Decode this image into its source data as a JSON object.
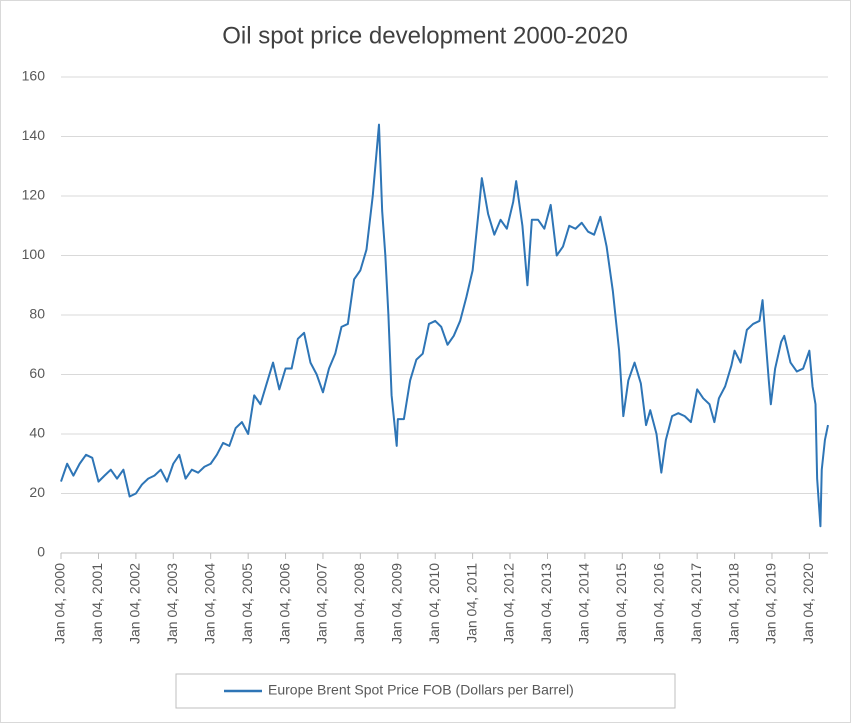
{
  "chart_data": {
    "type": "line",
    "title": "Oil spot price development 2000-2020",
    "x": [
      "2000-01-04",
      "2000-03-04",
      "2000-05-04",
      "2000-07-04",
      "2000-09-04",
      "2000-11-04",
      "2001-01-04",
      "2001-03-04",
      "2001-05-04",
      "2001-07-04",
      "2001-09-04",
      "2001-11-04",
      "2002-01-04",
      "2002-03-04",
      "2002-05-04",
      "2002-07-04",
      "2002-09-04",
      "2002-11-04",
      "2003-01-04",
      "2003-03-04",
      "2003-05-04",
      "2003-07-04",
      "2003-09-04",
      "2003-11-04",
      "2004-01-04",
      "2004-03-04",
      "2004-05-04",
      "2004-07-04",
      "2004-09-04",
      "2004-11-04",
      "2005-01-04",
      "2005-03-04",
      "2005-05-04",
      "2005-07-04",
      "2005-09-04",
      "2005-11-04",
      "2006-01-04",
      "2006-03-04",
      "2006-05-04",
      "2006-07-04",
      "2006-09-04",
      "2006-11-04",
      "2007-01-04",
      "2007-03-04",
      "2007-05-04",
      "2007-07-04",
      "2007-09-04",
      "2007-11-04",
      "2008-01-04",
      "2008-03-04",
      "2008-05-04",
      "2008-07-04",
      "2008-08-04",
      "2008-09-04",
      "2008-10-04",
      "2008-11-04",
      "2008-12-24",
      "2009-01-04",
      "2009-03-04",
      "2009-05-04",
      "2009-07-04",
      "2009-09-04",
      "2009-11-04",
      "2010-01-04",
      "2010-03-04",
      "2010-05-04",
      "2010-07-04",
      "2010-09-04",
      "2010-11-04",
      "2011-01-04",
      "2011-03-04",
      "2011-04-04",
      "2011-06-04",
      "2011-08-04",
      "2011-10-04",
      "2011-12-04",
      "2012-02-04",
      "2012-03-04",
      "2012-05-04",
      "2012-06-22",
      "2012-08-04",
      "2012-10-04",
      "2012-12-04",
      "2013-02-04",
      "2013-04-04",
      "2013-06-04",
      "2013-08-04",
      "2013-10-04",
      "2013-12-04",
      "2014-02-04",
      "2014-04-04",
      "2014-06-04",
      "2014-08-04",
      "2014-10-04",
      "2014-12-04",
      "2015-01-14",
      "2015-03-04",
      "2015-05-04",
      "2015-07-04",
      "2015-08-24",
      "2015-10-04",
      "2015-12-04",
      "2016-01-20",
      "2016-03-04",
      "2016-05-04",
      "2016-07-04",
      "2016-09-04",
      "2016-11-04",
      "2017-01-04",
      "2017-03-04",
      "2017-05-04",
      "2017-06-21",
      "2017-08-04",
      "2017-10-04",
      "2017-12-04",
      "2018-01-04",
      "2018-03-04",
      "2018-05-04",
      "2018-07-04",
      "2018-09-04",
      "2018-10-04",
      "2018-12-04",
      "2018-12-24",
      "2019-02-04",
      "2019-04-04",
      "2019-05-04",
      "2019-07-04",
      "2019-09-04",
      "2019-11-04",
      "2020-01-04",
      "2020-02-04",
      "2020-03-04",
      "2020-03-20",
      "2020-04-21",
      "2020-05-04",
      "2020-06-04",
      "2020-07-04"
    ],
    "series": [
      {
        "name": "Europe Brent Spot Price FOB (Dollars per Barrel)",
        "color": "#2e75b6",
        "values": [
          24,
          30,
          26,
          30,
          33,
          32,
          24,
          26,
          28,
          25,
          28,
          19,
          20,
          23,
          25,
          26,
          28,
          24,
          30,
          33,
          25,
          28,
          27,
          29,
          30,
          33,
          37,
          36,
          42,
          44,
          40,
          53,
          50,
          57,
          64,
          55,
          62,
          62,
          72,
          74,
          64,
          60,
          54,
          62,
          67,
          76,
          77,
          92,
          95,
          102,
          120,
          144,
          115,
          100,
          80,
          53,
          36,
          45,
          45,
          58,
          65,
          67,
          77,
          78,
          76,
          70,
          73,
          78,
          86,
          95,
          115,
          126,
          114,
          107,
          112,
          109,
          118,
          125,
          110,
          90,
          112,
          112,
          109,
          117,
          100,
          103,
          110,
          109,
          111,
          108,
          107,
          113,
          103,
          88,
          68,
          46,
          58,
          64,
          57,
          43,
          48,
          40,
          27,
          38,
          46,
          47,
          46,
          44,
          55,
          52,
          50,
          44,
          52,
          56,
          63,
          68,
          64,
          75,
          77,
          78,
          85,
          58,
          50,
          62,
          71,
          73,
          64,
          61,
          62,
          68,
          56,
          50,
          25,
          9,
          28,
          38,
          43
        ]
      }
    ],
    "xlim": [
      "2000-01-04",
      "2020-07-04"
    ],
    "xticks": [
      {
        "value": "2000-01-04",
        "label": "Jan 04, 2000"
      },
      {
        "value": "2001-01-04",
        "label": "Jan 04, 2001"
      },
      {
        "value": "2002-01-04",
        "label": "Jan 04, 2002"
      },
      {
        "value": "2003-01-04",
        "label": "Jan 04, 2003"
      },
      {
        "value": "2004-01-04",
        "label": "Jan 04, 2004"
      },
      {
        "value": "2005-01-04",
        "label": "Jan 04, 2005"
      },
      {
        "value": "2006-01-04",
        "label": "Jan 04, 2006"
      },
      {
        "value": "2007-01-04",
        "label": "Jan 04, 2007"
      },
      {
        "value": "2008-01-04",
        "label": "Jan 04, 2008"
      },
      {
        "value": "2009-01-04",
        "label": "Jan 04, 2009"
      },
      {
        "value": "2010-01-04",
        "label": "Jan 04, 2010"
      },
      {
        "value": "2011-01-04",
        "label": "Jan 04, 2011"
      },
      {
        "value": "2012-01-04",
        "label": "Jan 04, 2012"
      },
      {
        "value": "2013-01-04",
        "label": "Jan 04, 2013"
      },
      {
        "value": "2014-01-04",
        "label": "Jan 04, 2014"
      },
      {
        "value": "2015-01-04",
        "label": "Jan 04, 2015"
      },
      {
        "value": "2016-01-04",
        "label": "Jan 04, 2016"
      },
      {
        "value": "2017-01-04",
        "label": "Jan 04, 2017"
      },
      {
        "value": "2018-01-04",
        "label": "Jan 04, 2018"
      },
      {
        "value": "2019-01-04",
        "label": "Jan 04, 2019"
      },
      {
        "value": "2020-01-04",
        "label": "Jan 04, 2020"
      }
    ],
    "ylim": [
      0,
      160
    ],
    "yticks": [
      0,
      20,
      40,
      60,
      80,
      100,
      120,
      140,
      160
    ],
    "grid": true,
    "legend": "bottom"
  }
}
